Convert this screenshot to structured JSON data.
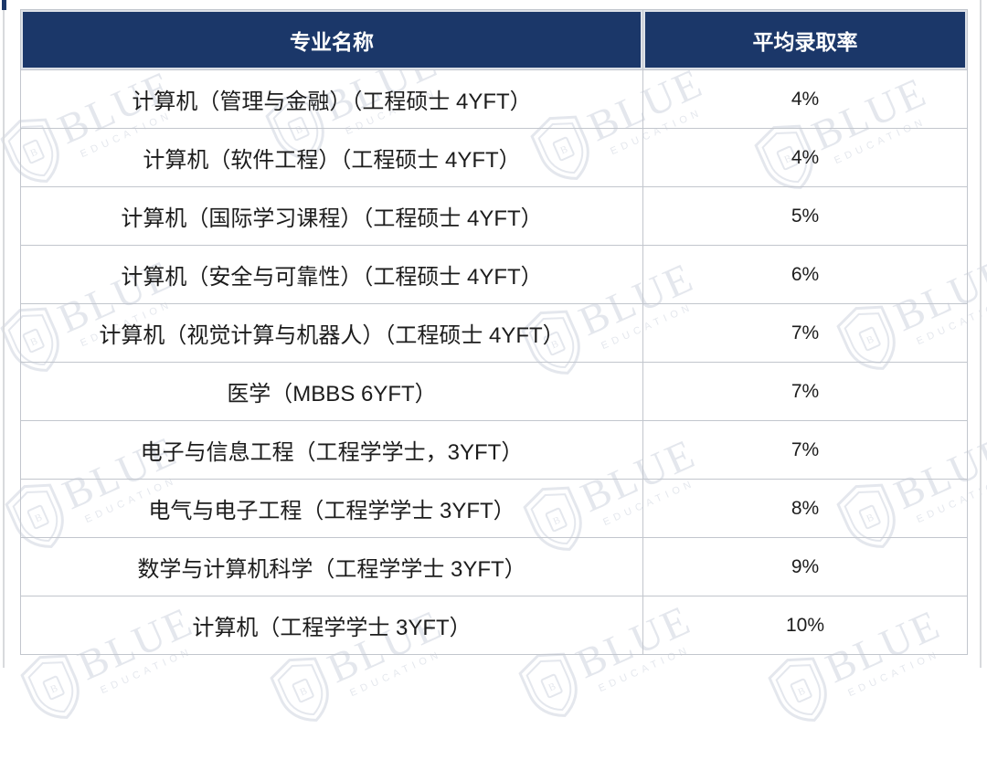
{
  "chart_data": {
    "type": "table",
    "columns": [
      "专业名称",
      "平均录取率"
    ],
    "rows": [
      [
        "计算机（管理与金融）（工程硕士 4YFT）",
        "4%"
      ],
      [
        "计算机（软件工程）（工程硕士 4YFT）",
        "4%"
      ],
      [
        "计算机（国际学习课程）（工程硕士 4YFT）",
        "5%"
      ],
      [
        "计算机（安全与可靠性）（工程硕士 4YFT）",
        "6%"
      ],
      [
        "计算机（视觉计算与机器人）（工程硕士 4YFT）",
        "7%"
      ],
      [
        "医学（MBBS 6YFT）",
        "7%"
      ],
      [
        "电子与信息工程（工程学学士，3YFT）",
        "7%"
      ],
      [
        "电气与电子工程（工程学学士 3YFT）",
        "8%"
      ],
      [
        "数学与计算机科学（工程学学士 3YFT）",
        "9%"
      ],
      [
        "计算机（工程学学士 3YFT）",
        "10%"
      ]
    ]
  },
  "watermark": {
    "brand": "BLUE",
    "sub": "EDUCATION"
  },
  "colors": {
    "header_bg": "#1b3769",
    "header_text": "#ffffff",
    "body_text": "#1c1c1c",
    "border": "#c2c6cd",
    "watermark": "rgba(30,56,105,0.12)"
  }
}
